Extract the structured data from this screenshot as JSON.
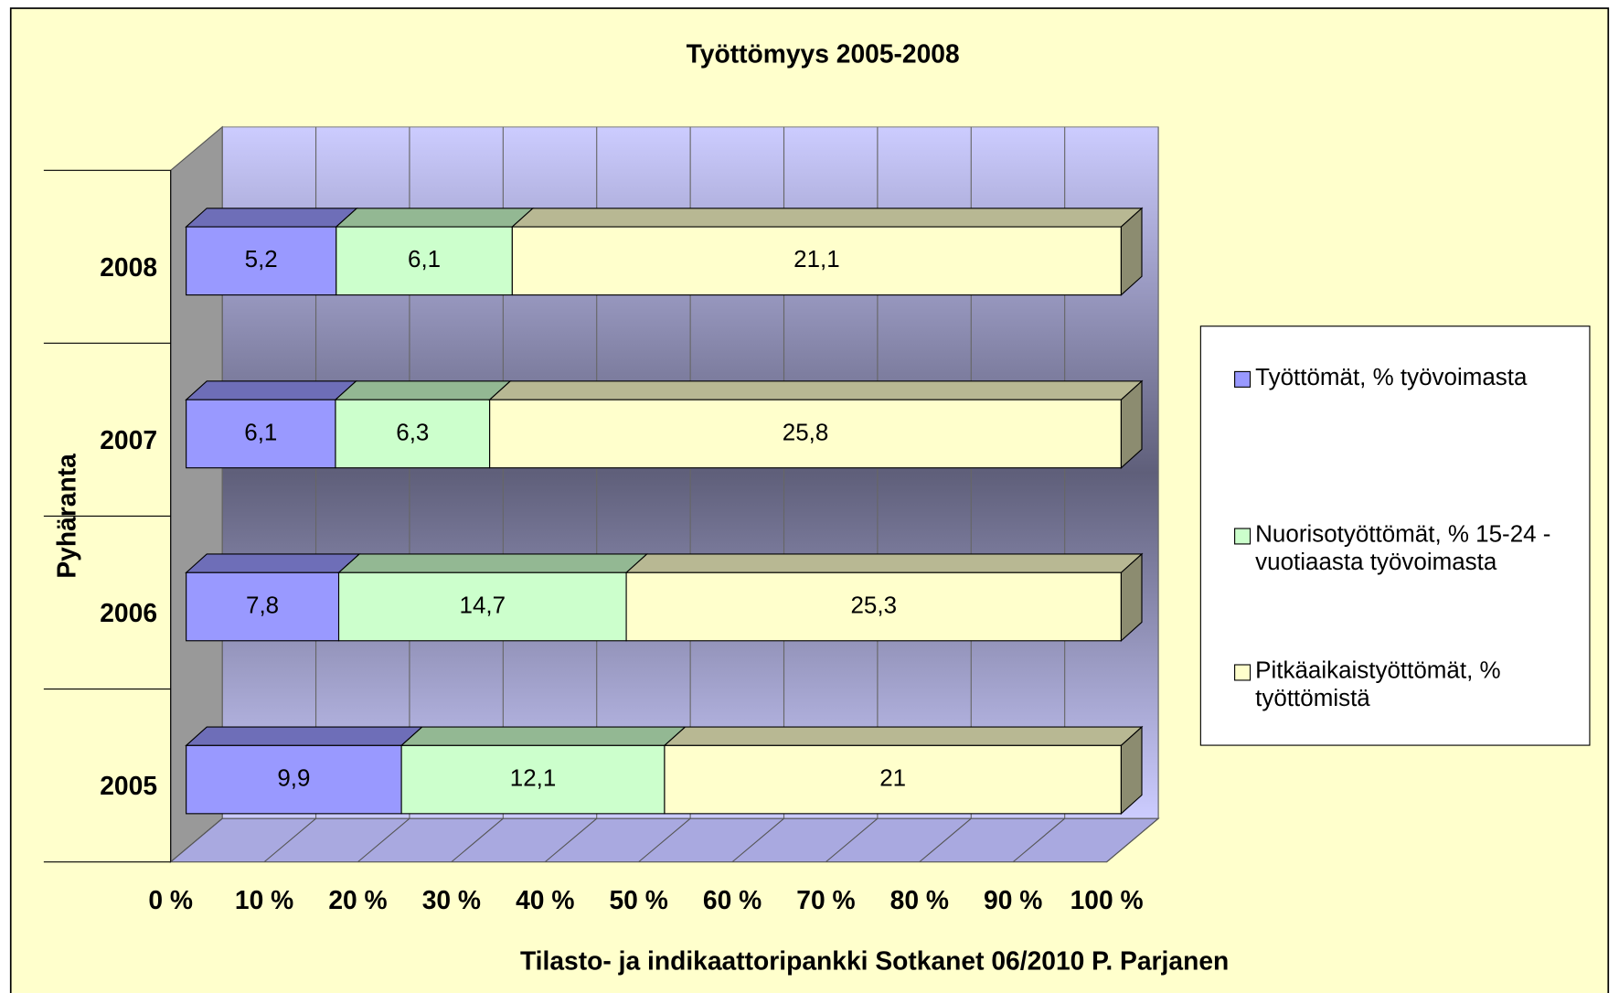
{
  "chart_data": {
    "type": "bar",
    "orientation": "horizontal",
    "stacked": "percent",
    "title": "Työttömyys 2005-2008",
    "x_label": "Tilasto- ja indikaattoripankki Sotkanet 06/2010 P. Parjanen",
    "y_label": "Pyhäranta",
    "categories": [
      "2008",
      "2007",
      "2006",
      "2005"
    ],
    "series": [
      {
        "name": "Työttömät, % työvoimasta",
        "color": "#9999ff",
        "values": [
          5.2,
          6.1,
          7.8,
          9.9
        ],
        "value_labels": [
          "5,2",
          "6,1",
          "7,8",
          "9,9"
        ]
      },
      {
        "name": "Nuorisotyöttömät, % 15-24 - vuotiaasta työvoimasta",
        "color": "#ccffcc",
        "values": [
          6.1,
          6.3,
          14.7,
          12.1
        ],
        "value_labels": [
          "6,1",
          "6,3",
          "14,7",
          "12,1"
        ]
      },
      {
        "name": "Pitkäaikaistyöttömät, % työttömistä",
        "color": "#ffffcc",
        "values": [
          21.1,
          25.8,
          25.3,
          21
        ],
        "value_labels": [
          "21,1",
          "25,8",
          "25,3",
          "21"
        ]
      }
    ],
    "xlim": [
      0,
      100
    ],
    "xticks": [
      {
        "value": 0,
        "label": "0 %"
      },
      {
        "value": 10,
        "label": "10 %"
      },
      {
        "value": 20,
        "label": "20 %"
      },
      {
        "value": 30,
        "label": "30 %"
      },
      {
        "value": 40,
        "label": "40 %"
      },
      {
        "value": 50,
        "label": "50 %"
      },
      {
        "value": 60,
        "label": "60 %"
      },
      {
        "value": 70,
        "label": "70 %"
      },
      {
        "value": 80,
        "label": "80 %"
      },
      {
        "value": 90,
        "label": "90 %"
      },
      {
        "value": 100,
        "label": "100 %"
      }
    ],
    "grid": true,
    "legend": "right"
  }
}
